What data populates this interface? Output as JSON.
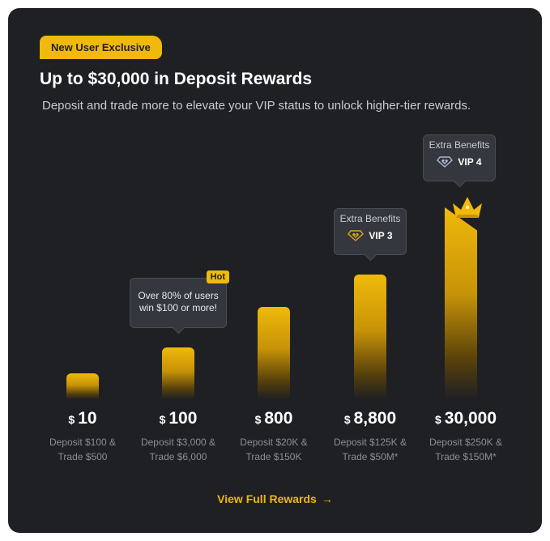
{
  "badge": "New User Exclusive",
  "title": "Up to $30,000 in Deposit Rewards",
  "subtitle": "Deposit and trade more to elevate your VIP status to unlock higher-tier rewards.",
  "tiers": [
    {
      "currency": "$",
      "amount": "10",
      "line1": "Deposit $100 &",
      "line2": "Trade $500"
    },
    {
      "currency": "$",
      "amount": "100",
      "line1": "Deposit $3,000 &",
      "line2": "Trade $6,000"
    },
    {
      "currency": "$",
      "amount": "800",
      "line1": "Deposit $20K &",
      "line2": "Trade $150K"
    },
    {
      "currency": "$",
      "amount": "8,800",
      "line1": "Deposit $125K &",
      "line2": "Trade $50M*"
    },
    {
      "currency": "$",
      "amount": "30,000",
      "line1": "Deposit $250K &",
      "line2": "Trade $150M*"
    }
  ],
  "hot_tooltip": {
    "tag": "Hot",
    "line1": "Over 80% of users",
    "line2": "win $100 or more!"
  },
  "vip3_tooltip": {
    "label": "Extra Benefits",
    "vip": "VIP 3",
    "icon": "vip-diamond-icon"
  },
  "vip4_tooltip": {
    "label": "Extra Benefits",
    "vip": "VIP 4",
    "icon": "vip-diamond-icon"
  },
  "cta": {
    "label": "View Full Rewards",
    "icon": "arrow-right-icon"
  },
  "colors": {
    "accent": "#f0b90b",
    "card": "#1e2024",
    "muted": "#8b8e96"
  }
}
